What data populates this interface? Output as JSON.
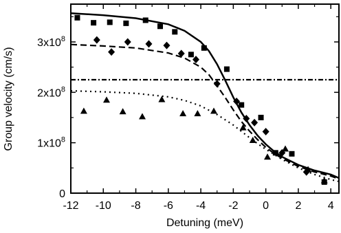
{
  "chart_data": {
    "type": "scatter",
    "title": "",
    "xlabel": "Detuning (meV)",
    "ylabel": "Group velocity (cm/s)",
    "xlim": [
      -12,
      4.5
    ],
    "ylim": [
      0,
      375000000.0
    ],
    "grid": false,
    "legend": "none",
    "x_ticks": [
      -12,
      -10,
      -8,
      -6,
      -4,
      -2,
      0,
      2,
      4
    ],
    "x_tick_labels": [
      "-12",
      "-10",
      "-8",
      "-6",
      "-4",
      "-2",
      "0",
      "2",
      "4"
    ],
    "y_ticks": [
      0,
      100000000.0,
      200000000.0,
      300000000.0
    ],
    "y_tick_labels": [
      {
        "base": "0",
        "exp": ""
      },
      {
        "base": "1x10",
        "exp": "8"
      },
      {
        "base": "2x10",
        "exp": "8"
      },
      {
        "base": "3x10",
        "exp": "8"
      }
    ],
    "series": [
      {
        "marker": "square",
        "x": [
          -11.6,
          -10.6,
          -9.6,
          -8.6,
          -7.4,
          -6.5,
          -5.6,
          -4.6,
          -3.8,
          -2.4,
          -1.5,
          -0.3,
          0.6,
          1.6,
          3.6
        ],
        "y": [
          348000000.0,
          338000000.0,
          339000000.0,
          337000000.0,
          343000000.0,
          331000000.0,
          320000000.0,
          275000000.0,
          288000000.0,
          246000000.0,
          175000000.0,
          150000000.0,
          80000000.0,
          78000000.0,
          22000000.0
        ]
      },
      {
        "marker": "diamond",
        "x": [
          -10.4,
          -9.5,
          -8.5,
          -7.2,
          -6.1,
          -5.2,
          -4.3,
          -3.0,
          -1.8,
          -1.2,
          -0.7,
          0.0,
          1.0,
          2.5
        ],
        "y": [
          304000000.0,
          280000000.0,
          300000000.0,
          296000000.0,
          293000000.0,
          277000000.0,
          265000000.0,
          217000000.0,
          182000000.0,
          148000000.0,
          140000000.0,
          122000000.0,
          80000000.0,
          42000000.0
        ]
      },
      {
        "marker": "triangle",
        "x": [
          -11.2,
          -9.8,
          -8.8,
          -7.6,
          -6.4,
          -5.1,
          -4.2,
          -3.2,
          -1.4,
          -0.8,
          0.1,
          1.2,
          2.6,
          3.6
        ],
        "y": [
          163000000.0,
          185000000.0,
          162000000.0,
          152000000.0,
          186000000.0,
          158000000.0,
          158000000.0,
          163000000.0,
          130000000.0,
          105000000.0,
          72000000.0,
          88000000.0,
          47000000.0,
          25000000.0
        ]
      }
    ],
    "lines": [
      {
        "style": "solid",
        "x": [
          -12,
          -10,
          -8,
          -6,
          -5,
          -4,
          -3.5,
          -3,
          -2.5,
          -2,
          -1.5,
          -1,
          -0.5,
          0,
          0.5,
          1,
          2,
          3,
          4,
          4.5
        ],
        "y": [
          357000000.0,
          353000000.0,
          347000000.0,
          335000000.0,
          322000000.0,
          300000000.0,
          282000000.0,
          256000000.0,
          224000000.0,
          190000000.0,
          160000000.0,
          135000000.0,
          114000000.0,
          97000000.0,
          83000000.0,
          72000000.0,
          56000000.0,
          45000000.0,
          37000000.0,
          30000000.0
        ]
      },
      {
        "style": "dashed",
        "x": [
          -12,
          -10,
          -8,
          -6,
          -5,
          -4,
          -3.5,
          -3,
          -2.5,
          -2,
          -1.5,
          -1,
          -0.5,
          0,
          0.5,
          1,
          2,
          3,
          4,
          4.5
        ],
        "y": [
          295000000.0,
          292000000.0,
          288000000.0,
          278000000.0,
          268000000.0,
          250000000.0,
          235000000.0,
          213000000.0,
          190000000.0,
          165000000.0,
          142000000.0,
          123000000.0,
          106000000.0,
          91000000.0,
          79000000.0,
          69000000.0,
          53000000.0,
          42000000.0,
          34000000.0,
          28000000.0
        ]
      },
      {
        "style": "dotted",
        "x": [
          -12,
          -10,
          -8,
          -6,
          -5,
          -4,
          -3,
          -2,
          -1,
          -0.5,
          0,
          0.5,
          1,
          2,
          3,
          4,
          4.5
        ],
        "y": [
          203000000.0,
          201000000.0,
          198000000.0,
          191000000.0,
          184000000.0,
          173000000.0,
          156000000.0,
          135000000.0,
          110000000.0,
          98000000.0,
          87000000.0,
          77000000.0,
          67000000.0,
          50000000.0,
          37000000.0,
          27000000.0,
          23000000.0
        ]
      },
      {
        "style": "dash-dot",
        "x": [
          -12,
          4.5
        ],
        "y": [
          225000000.0,
          225000000.0
        ]
      }
    ]
  }
}
